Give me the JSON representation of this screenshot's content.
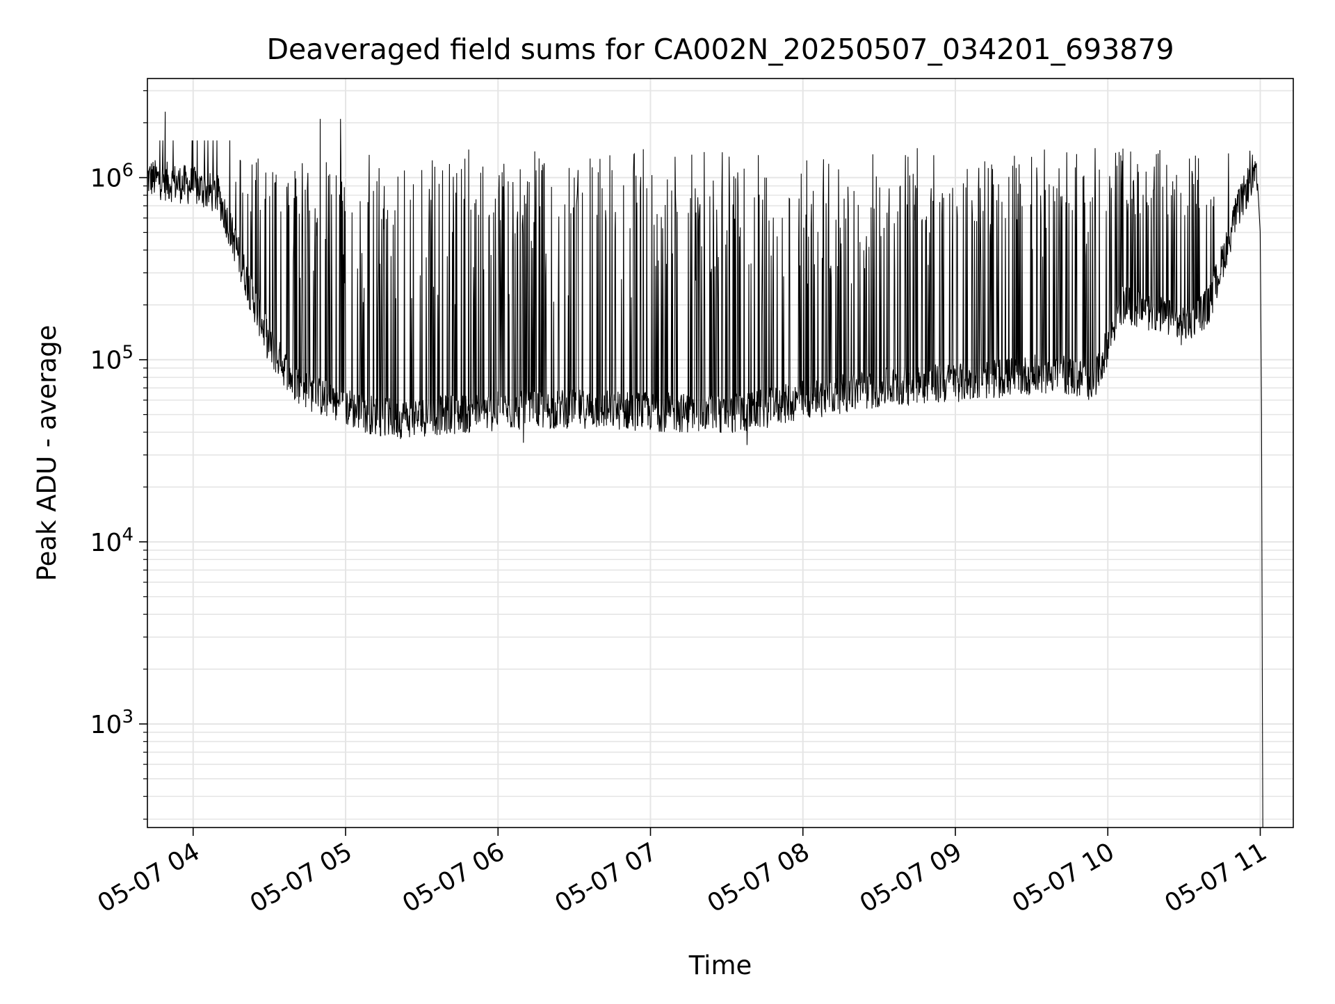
{
  "chart_data": {
    "type": "line",
    "title": "Deaveraged field sums for CA002N_20250507_034201_693879",
    "xlabel": "Time",
    "ylabel": "Peak ADU - average",
    "yscale": "log",
    "ylim": [
      270,
      3500000
    ],
    "xlim": [
      "2025-05-07T03:42:00",
      "2025-05-07T11:13:00"
    ],
    "grid": true,
    "line_color": "#000000",
    "grid_color": "#e5e5e5",
    "x_ticks": [
      {
        "value": "2025-05-07T04:00:00",
        "label": "05-07 04"
      },
      {
        "value": "2025-05-07T05:00:00",
        "label": "05-07 05"
      },
      {
        "value": "2025-05-07T06:00:00",
        "label": "05-07 06"
      },
      {
        "value": "2025-05-07T07:00:00",
        "label": "05-07 07"
      },
      {
        "value": "2025-05-07T08:00:00",
        "label": "05-07 08"
      },
      {
        "value": "2025-05-07T09:00:00",
        "label": "05-07 09"
      },
      {
        "value": "2025-05-07T10:00:00",
        "label": "05-07 10"
      },
      {
        "value": "2025-05-07T11:00:00",
        "label": "05-07 11"
      }
    ],
    "y_ticks": [
      {
        "value": 1000,
        "base": "10",
        "exp": "3"
      },
      {
        "value": 10000,
        "base": "10",
        "exp": "4"
      },
      {
        "value": 100000,
        "base": "10",
        "exp": "5"
      },
      {
        "value": 1000000,
        "base": "10",
        "exp": "6"
      }
    ],
    "series": [
      {
        "baseline": {
          "x": [
            "2025-05-07T03:42:00",
            "2025-05-07T03:50:00",
            "2025-05-07T04:00:00",
            "2025-05-07T04:10:00",
            "2025-05-07T04:15:00",
            "2025-05-07T04:22:00",
            "2025-05-07T04:30:00",
            "2025-05-07T04:40:00",
            "2025-05-07T04:50:00",
            "2025-05-07T05:00:00",
            "2025-05-07T05:10:00",
            "2025-05-07T05:20:00",
            "2025-05-07T05:40:00",
            "2025-05-07T06:00:00",
            "2025-05-07T06:30:00",
            "2025-05-07T07:00:00",
            "2025-05-07T07:30:00",
            "2025-05-07T07:40:00",
            "2025-05-07T08:00:00",
            "2025-05-07T08:30:00",
            "2025-05-07T09:00:00",
            "2025-05-07T09:20:00",
            "2025-05-07T09:40:00",
            "2025-05-07T09:55:00",
            "2025-05-07T10:05:00",
            "2025-05-07T10:20:00",
            "2025-05-07T10:30:00",
            "2025-05-07T10:40:00",
            "2025-05-07T10:50:00",
            "2025-05-07T10:57:00",
            "2025-05-07T10:59:00",
            "2025-05-07T11:00:00",
            "2025-05-07T11:00:30",
            "2025-05-07T11:01:00"
          ],
          "y": [
            1000000,
            950000,
            900000,
            800000,
            500000,
            250000,
            120000,
            75000,
            62000,
            55000,
            50000,
            47000,
            50000,
            52000,
            54000,
            52000,
            50000,
            52000,
            60000,
            70000,
            75000,
            80000,
            85000,
            75000,
            200000,
            180000,
            150000,
            200000,
            600000,
            1050000,
            900000,
            500000,
            50000,
            270
          ]
        },
        "spikes": [
          {
            "x": "2025-05-07T03:49:00",
            "y": 2300000
          },
          {
            "x": "2025-05-07T04:50:00",
            "y": 2100000
          },
          {
            "x": "2025-05-07T04:58:00",
            "y": 2100000
          },
          {
            "x": "2025-05-07T05:30:00",
            "y": 1100000
          },
          {
            "x": "2025-05-07T06:30:00",
            "y": 1000000
          },
          {
            "x": "2025-05-07T07:45:00",
            "y": 1000000
          },
          {
            "x": "2025-05-07T08:45:00",
            "y": 1450000
          },
          {
            "x": "2025-05-07T09:30:00",
            "y": 1300000
          },
          {
            "x": "2025-05-07T09:55:00",
            "y": 1450000
          },
          {
            "x": "2025-05-07T10:25:00",
            "y": 800000
          },
          {
            "x": "2025-05-07T07:38:00",
            "y": 34000
          },
          {
            "x": "2025-05-07T06:10:00",
            "y": 35000
          }
        ]
      }
    ]
  }
}
